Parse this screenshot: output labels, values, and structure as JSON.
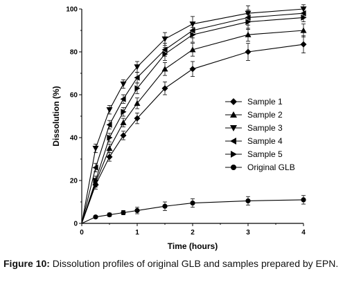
{
  "caption": {
    "label": "Figure 10:",
    "text": "Dissolution profiles of original GLB and samples prepared by EPN."
  },
  "chart_data": {
    "type": "line",
    "xlabel": "Time (hours)",
    "ylabel": "Dissolution (%)",
    "xlim": [
      0,
      4
    ],
    "ylim": [
      0,
      100
    ],
    "xticks": [
      0,
      1,
      2,
      3,
      4
    ],
    "yticks": [
      0,
      20,
      40,
      60,
      80,
      100
    ],
    "grid": false,
    "legend_position": "center-right",
    "error_bars": true,
    "line_color": "#000000",
    "series": [
      {
        "name": "Sample 1",
        "marker": "diamond",
        "x": [
          0,
          0.25,
          0.5,
          0.75,
          1,
          1.5,
          2,
          3,
          4
        ],
        "y": [
          0,
          18,
          31,
          41,
          49,
          63,
          72,
          80,
          83.5
        ],
        "err": [
          0,
          2,
          2,
          2,
          2.5,
          3,
          3.5,
          4,
          4
        ]
      },
      {
        "name": "Sample 2",
        "marker": "triangle-up",
        "x": [
          0,
          0.25,
          0.5,
          0.75,
          1,
          1.5,
          2,
          3,
          4
        ],
        "y": [
          0,
          19,
          35,
          47,
          56,
          72,
          81,
          88,
          90
        ],
        "err": [
          0,
          2,
          2,
          2,
          2.5,
          3,
          3,
          3,
          3
        ]
      },
      {
        "name": "Sample 3",
        "marker": "triangle-down",
        "x": [
          0,
          0.25,
          0.5,
          0.75,
          1,
          1.5,
          2,
          3,
          4
        ],
        "y": [
          0,
          35,
          53,
          65,
          73,
          86,
          93,
          98,
          100
        ],
        "err": [
          0,
          2,
          2,
          2,
          2.5,
          3,
          3.5,
          3.5,
          2
        ]
      },
      {
        "name": "Sample 4",
        "marker": "triangle-left",
        "x": [
          0,
          0.25,
          0.5,
          0.75,
          1,
          1.5,
          2,
          3,
          4
        ],
        "y": [
          0,
          26,
          46,
          58,
          68,
          81,
          90,
          96,
          98
        ],
        "err": [
          0,
          2,
          2,
          2,
          2.5,
          3,
          3.5,
          3.5,
          2
        ]
      },
      {
        "name": "Sample 5",
        "marker": "triangle-right",
        "x": [
          0,
          0.25,
          0.5,
          0.75,
          1,
          1.5,
          2,
          3,
          4
        ],
        "y": [
          0,
          20,
          40,
          52,
          63,
          79,
          88,
          94,
          96
        ],
        "err": [
          0,
          2,
          2,
          2,
          2.5,
          3,
          3.5,
          3.5,
          2
        ]
      },
      {
        "name": "Original GLB",
        "marker": "circle",
        "x": [
          0,
          0.25,
          0.5,
          0.75,
          1,
          1.5,
          2,
          3,
          4
        ],
        "y": [
          0,
          3,
          4,
          5,
          6,
          8,
          9.5,
          10.5,
          11
        ],
        "err": [
          0,
          0.5,
          0.8,
          1,
          1.5,
          2,
          2,
          2,
          2
        ]
      }
    ]
  }
}
